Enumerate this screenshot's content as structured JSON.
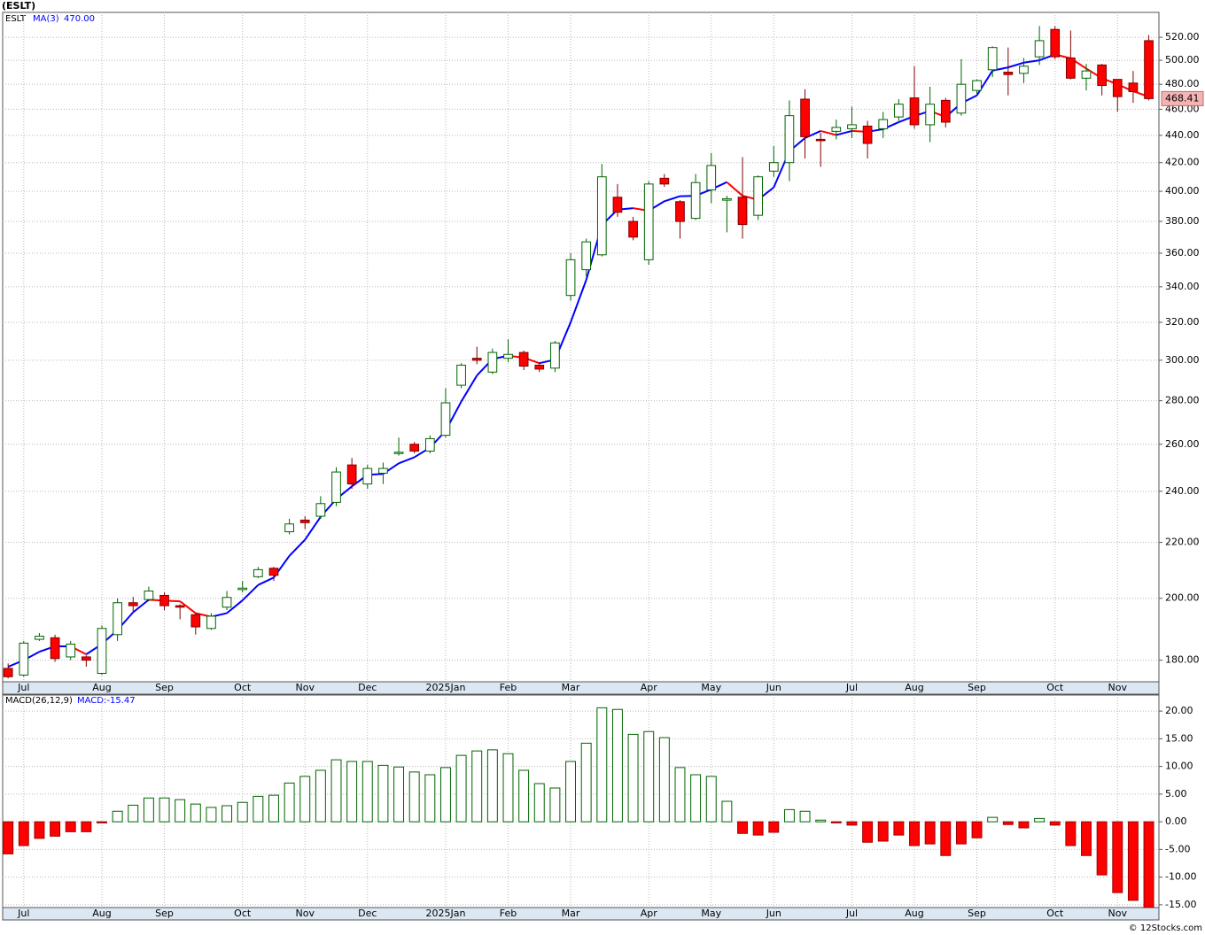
{
  "chart_data": [
    {
      "type": "candlestick",
      "title": "(ESLT)",
      "legend_label": "ESLT",
      "log_scale": true,
      "grid": true,
      "up_color": "#006400",
      "down_color": "#ff0000",
      "down_wick_color": "#800000",
      "categories": [
        null,
        "Jul",
        null,
        null,
        null,
        null,
        "Aug",
        null,
        null,
        null,
        "Sep",
        null,
        null,
        null,
        null,
        "Oct",
        null,
        null,
        null,
        "Nov",
        null,
        null,
        null,
        "Dec",
        null,
        null,
        null,
        null,
        "2025Jan",
        null,
        null,
        null,
        "Feb",
        null,
        null,
        null,
        "Mar",
        null,
        null,
        null,
        null,
        "Apr",
        null,
        null,
        null,
        "May",
        null,
        null,
        null,
        "Jun",
        null,
        null,
        null,
        null,
        "Jul",
        null,
        null,
        null,
        "Aug",
        null,
        null,
        null,
        "Sep",
        null,
        null,
        null,
        null,
        "Oct",
        null,
        null,
        null,
        "Nov",
        null,
        null
      ],
      "open": [
        177.5,
        175.5,
        186.5,
        187,
        181,
        181,
        176,
        188,
        198.5,
        199.6,
        201,
        197.5,
        194.5,
        190,
        197,
        203,
        207.5,
        210.5,
        224,
        228.5,
        230,
        235.5,
        251,
        243,
        247.5,
        256,
        260,
        257,
        264,
        287.5,
        301,
        294,
        301,
        304,
        297.5,
        296,
        335,
        350,
        359,
        396,
        380,
        356,
        409,
        393,
        382,
        401,
        394,
        396,
        384,
        414,
        420,
        468,
        437,
        443,
        445,
        447,
        445,
        454,
        469,
        448,
        467,
        457,
        475,
        492,
        490,
        489,
        503,
        527,
        502,
        485,
        496,
        484,
        481,
        517
      ],
      "high": [
        179,
        186,
        188.5,
        188,
        186,
        181.5,
        191,
        200,
        200.5,
        204,
        202,
        198,
        195,
        195,
        202.5,
        206,
        211,
        211,
        229,
        230,
        238,
        250,
        254,
        251,
        252,
        263,
        261,
        264,
        286,
        298.5,
        307,
        306,
        311,
        305,
        299,
        310,
        360,
        369,
        419,
        405,
        383,
        407,
        412,
        394,
        412,
        427,
        397,
        424,
        411,
        432,
        467,
        476,
        442,
        452,
        462,
        451,
        458,
        468,
        495,
        478,
        469,
        501,
        484,
        512,
        511,
        502,
        530,
        530,
        526,
        497,
        497,
        484,
        491,
        522
      ],
      "low": [
        174.5,
        175,
        186,
        179.5,
        180,
        178,
        175.5,
        186,
        195,
        199,
        196,
        193,
        188,
        189.5,
        196,
        202,
        207,
        206,
        223,
        225,
        229,
        234,
        241,
        241,
        243,
        255,
        256,
        256,
        263,
        286,
        298,
        293,
        299,
        295,
        294,
        294,
        332,
        346,
        358,
        383,
        368,
        353,
        403,
        369,
        381,
        392,
        373,
        369,
        381,
        410,
        407,
        423,
        417,
        437,
        438,
        423,
        438,
        451,
        445,
        435,
        446,
        455,
        472,
        486,
        471,
        481,
        496,
        501,
        484,
        475,
        471,
        458,
        465,
        467
      ],
      "close": [
        175,
        185.3,
        187.5,
        180.5,
        185,
        180,
        190,
        198.5,
        197.5,
        202.5,
        197.5,
        197,
        190.5,
        194,
        200.3,
        203.5,
        210,
        208,
        227,
        227.5,
        235,
        248,
        243,
        249.5,
        249.5,
        256.5,
        257,
        262.5,
        279,
        297.5,
        300,
        304,
        303,
        297,
        295.5,
        309,
        356,
        367,
        410,
        386,
        370,
        405,
        405,
        380,
        406,
        418,
        395,
        378,
        410,
        420,
        455,
        439,
        436,
        446,
        448,
        434,
        452,
        464,
        448,
        464,
        450,
        480,
        483,
        511,
        488,
        495,
        517,
        503,
        485,
        491,
        479,
        470,
        474,
        468.41
      ],
      "last_price_label": "468.41",
      "ma": {
        "name": "MA(3)",
        "current_label": "470.00",
        "up_color": "#0000ff",
        "down_color": "#ff0000",
        "values": [
          178,
          180,
          182.6,
          184.3,
          184.3,
          181.8,
          185,
          189.5,
          195.3,
          199.5,
          199.2,
          199,
          195,
          193.8,
          195,
          199.3,
          204.6,
          207.2,
          215,
          221,
          229.8,
          236.8,
          242,
          246.8,
          247.2,
          251.7,
          254.3,
          258.5,
          266,
          279.6,
          292.3,
          300.6,
          302.3,
          301.3,
          298.5,
          300.3,
          320,
          344,
          377.7,
          387.7,
          388.7,
          387,
          393.3,
          396.7,
          397,
          401.3,
          406.3,
          397,
          394.3,
          402.7,
          428.3,
          438,
          443.3,
          440.3,
          443.3,
          442.7,
          444.7,
          450,
          454.7,
          458.7,
          454,
          464.7,
          471,
          491.3,
          494,
          498,
          500,
          505,
          501.7,
          493,
          485,
          480,
          474.3,
          470
        ]
      },
      "ylim": [
        173.5,
        542.5
      ],
      "yticks": [
        {
          "value": 180,
          "label": "180.00"
        },
        {
          "value": 200,
          "label": "200.00"
        },
        {
          "value": 220,
          "label": "220.00"
        },
        {
          "value": 240,
          "label": "240.00"
        },
        {
          "value": 260,
          "label": "260.00"
        },
        {
          "value": 280,
          "label": "280.00"
        },
        {
          "value": 300,
          "label": "300.00"
        },
        {
          "value": 320,
          "label": "320.00"
        },
        {
          "value": 340,
          "label": "340.00"
        },
        {
          "value": 360,
          "label": "360.00"
        },
        {
          "value": 380,
          "label": "380.00"
        },
        {
          "value": 400,
          "label": "400.00"
        },
        {
          "value": 420,
          "label": "420.00"
        },
        {
          "value": 440,
          "label": "440.00"
        },
        {
          "value": 460,
          "label": "460.00"
        },
        {
          "value": 480,
          "label": "480.00"
        },
        {
          "value": 500,
          "label": "500.00"
        },
        {
          "value": 520,
          "label": "520.00"
        }
      ]
    },
    {
      "type": "bar",
      "legend_label": "MACD(26,12,9)",
      "current_label": "MACD:-15.47",
      "grid": true,
      "up_color": "#006400",
      "down_color": "#ff0000",
      "categories": [
        null,
        "Jul",
        null,
        null,
        null,
        null,
        "Aug",
        null,
        null,
        null,
        "Sep",
        null,
        null,
        null,
        null,
        "Oct",
        null,
        null,
        null,
        "Nov",
        null,
        null,
        null,
        "Dec",
        null,
        null,
        null,
        null,
        "2025Jan",
        null,
        null,
        null,
        "Feb",
        null,
        null,
        null,
        "Mar",
        null,
        null,
        null,
        null,
        "Apr",
        null,
        null,
        null,
        "May",
        null,
        null,
        null,
        "Jun",
        null,
        null,
        null,
        null,
        "Jul",
        null,
        null,
        null,
        "Aug",
        null,
        null,
        null,
        "Sep",
        null,
        null,
        null,
        null,
        "Oct",
        null,
        null,
        null,
        "Nov",
        null,
        null
      ],
      "values": [
        -5.8,
        -4.3,
        -3.0,
        -2.6,
        -1.8,
        -1.8,
        -0.2,
        1.9,
        3.0,
        4.3,
        4.3,
        4.0,
        3.2,
        2.6,
        2.9,
        3.5,
        4.6,
        4.8,
        7.0,
        8.2,
        9.3,
        11.2,
        10.9,
        10.9,
        10.2,
        9.9,
        9.0,
        8.5,
        9.8,
        12.0,
        12.8,
        13.0,
        12.3,
        9.3,
        6.9,
        6.1,
        10.9,
        14.2,
        20.6,
        20.3,
        15.8,
        16.3,
        15.2,
        9.8,
        8.5,
        8.2,
        3.7,
        -2.1,
        -2.4,
        -1.9,
        2.2,
        1.9,
        0.3,
        -0.2,
        -0.6,
        -3.7,
        -3.5,
        -2.4,
        -4.3,
        -4.0,
        -6.1,
        -4.0,
        -2.9,
        0.8,
        -0.5,
        -1.1,
        0.6,
        -0.6,
        -4.3,
        -6.1,
        -9.6,
        -12.8,
        -14.2,
        -15.47
      ],
      "ylim": [
        -15.5,
        22.9
      ],
      "yticks": [
        {
          "value": -15,
          "label": "-15.00"
        },
        {
          "value": -10,
          "label": "-10.00"
        },
        {
          "value": -5,
          "label": "-5.00"
        },
        {
          "value": 0,
          "label": "0.00"
        },
        {
          "value": 5,
          "label": "5.00"
        },
        {
          "value": 10,
          "label": "10.00"
        },
        {
          "value": 15,
          "label": "15.00"
        },
        {
          "value": 20,
          "label": "20.00"
        }
      ]
    }
  ],
  "footer": "© 12Stocks.com"
}
